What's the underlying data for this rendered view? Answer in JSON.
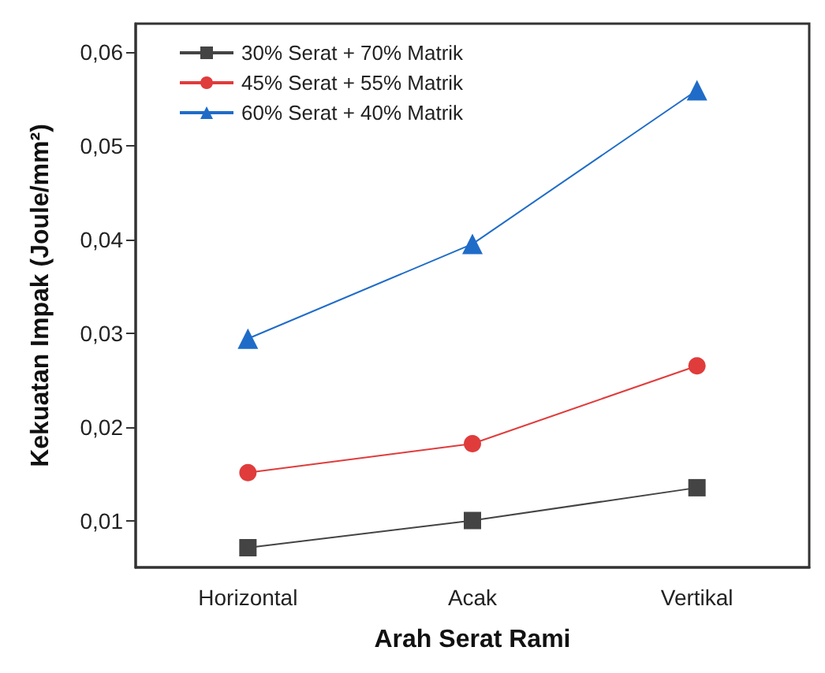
{
  "chart_data": {
    "type": "line",
    "xlabel": "Arah Serat Rami",
    "ylabel": "Kekuatan Impak (Joule/mm²)",
    "categories": [
      "Horizontal",
      "Acak",
      "Vertikal"
    ],
    "series": [
      {
        "name": "30% Serat + 70% Matrik",
        "color": "#444444",
        "marker": "square",
        "values": [
          0.0071,
          0.01,
          0.0135
        ]
      },
      {
        "name": "45% Serat + 55% Matrik",
        "color": "#e03c3c",
        "marker": "circle",
        "values": [
          0.0151,
          0.0182,
          0.0265
        ]
      },
      {
        "name": "60% Serat + 40% Matrik",
        "color": "#1f6cc8",
        "marker": "triangle",
        "values": [
          0.0294,
          0.0395,
          0.0559
        ]
      }
    ],
    "ylim": [
      0.005,
      0.063
    ],
    "yticks": [
      {
        "value": 0.01,
        "label": "0,01"
      },
      {
        "value": 0.02,
        "label": "0,02"
      },
      {
        "value": 0.03,
        "label": "0,03"
      },
      {
        "value": 0.04,
        "label": "0,04"
      },
      {
        "value": 0.05,
        "label": "0,05"
      },
      {
        "value": 0.06,
        "label": "0,06"
      }
    ],
    "grid": false,
    "legend": "top left",
    "line_style": "solid"
  }
}
